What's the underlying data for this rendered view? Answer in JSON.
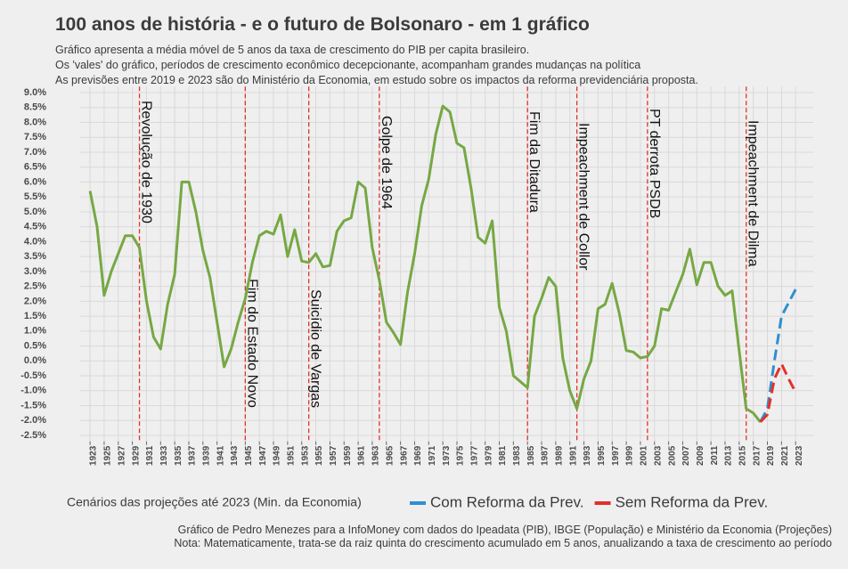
{
  "chart_data": {
    "type": "line",
    "title": "100 anos de história - e o futuro de Bolsonaro - em 1 gráfico",
    "subtitle": [
      "Gráfico apresenta a média móvel de 5 anos da taxa de crescimento do PIB per capita brasileiro.",
      "Os 'vales' do gráfico, períodos de crescimento econômico decepcionante, acompanham grandes mudanças na política",
      "As previsões entre 2019 e 2023 são do Ministério da Economia, em estudo sobre os impactos da reforma previdenciária proposta."
    ],
    "caption": [
      "Gráfico de Pedro Menezes para a InfoMoney com dados do Ipeadata (PIB), IBGE (População) e Ministério da Economia (Projeções)",
      "Nota: Matematicamente, trata-se da raiz quinta do crescimento acumulado em 5 anos, anualizando a taxa de crescimento ao período"
    ],
    "legend_title": "Cenários das projeções até 2023 (Min. da Economia)",
    "legend": "bottom",
    "grid": true,
    "xlim": [
      1921.6,
      2025.5
    ],
    "ylim": [
      -2.7,
      9.2
    ],
    "xticks": [
      1923,
      1925,
      1927,
      1929,
      1931,
      1933,
      1935,
      1937,
      1939,
      1941,
      1943,
      1945,
      1947,
      1949,
      1951,
      1953,
      1955,
      1957,
      1959,
      1961,
      1963,
      1965,
      1967,
      1969,
      1971,
      1973,
      1975,
      1977,
      1979,
      1981,
      1983,
      1985,
      1987,
      1989,
      1991,
      1993,
      1995,
      1997,
      1999,
      2001,
      2003,
      2005,
      2007,
      2009,
      2011,
      2013,
      2015,
      2017,
      2019,
      2021,
      2023
    ],
    "yticks": [
      {
        "value": -2.5,
        "label": "-2.5%"
      },
      {
        "value": -2,
        "label": "-2.0%"
      },
      {
        "value": -1.5,
        "label": "-1.5%"
      },
      {
        "value": -1,
        "label": "-1.0%"
      },
      {
        "value": -0.5,
        "label": "-0.5%"
      },
      {
        "value": 0,
        "label": "0.0%"
      },
      {
        "value": 0.5,
        "label": "0.5%"
      },
      {
        "value": 1,
        "label": "1.0%"
      },
      {
        "value": 1.5,
        "label": "1.5%"
      },
      {
        "value": 2,
        "label": "2.0%"
      },
      {
        "value": 2.5,
        "label": "2.5%"
      },
      {
        "value": 3,
        "label": "3.0%"
      },
      {
        "value": 3.5,
        "label": "3.5%"
      },
      {
        "value": 4,
        "label": "4.0%"
      },
      {
        "value": 4.5,
        "label": "4.5%"
      },
      {
        "value": 5,
        "label": "5.0%"
      },
      {
        "value": 5.5,
        "label": "5.5%"
      },
      {
        "value": 6,
        "label": "6.0%"
      },
      {
        "value": 6.5,
        "label": "6.5%"
      },
      {
        "value": 7,
        "label": "7.0%"
      },
      {
        "value": 7.5,
        "label": "7.5%"
      },
      {
        "value": 8,
        "label": "8.0%"
      },
      {
        "value": 8.5,
        "label": "8.5%"
      },
      {
        "value": 9,
        "label": "9.0%"
      }
    ],
    "series": [
      {
        "color": "#76a844",
        "dashed": false,
        "x": [
          1923,
          1924,
          1925,
          1926,
          1927,
          1928,
          1929,
          1930,
          1931,
          1932,
          1933,
          1934,
          1935,
          1936,
          1937,
          1938,
          1939,
          1940,
          1941,
          1942,
          1943,
          1944,
          1945,
          1946,
          1947,
          1948,
          1949,
          1950,
          1951,
          1952,
          1953,
          1954,
          1955,
          1956,
          1957,
          1958,
          1959,
          1960,
          1961,
          1962,
          1963,
          1964,
          1965,
          1966,
          1967,
          1968,
          1969,
          1970,
          1971,
          1972,
          1973,
          1974,
          1975,
          1976,
          1977,
          1978,
          1979,
          1980,
          1981,
          1982,
          1983,
          1984,
          1985,
          1986,
          1987,
          1988,
          1989,
          1990,
          1991,
          1992,
          1993,
          1994,
          1995,
          1996,
          1997,
          1998,
          1999,
          2000,
          2001,
          2002,
          2003,
          2004,
          2005,
          2006,
          2007,
          2008,
          2009,
          2010,
          2011,
          2012,
          2013,
          2014,
          2015,
          2016,
          2017,
          2018
        ],
        "values": [
          5.7,
          4.5,
          2.2,
          3.0,
          3.6,
          4.2,
          4.2,
          3.8,
          2.0,
          0.8,
          0.4,
          1.9,
          2.9,
          6.0,
          6.0,
          5.0,
          3.7,
          2.8,
          1.3,
          -0.2,
          0.4,
          1.3,
          2.1,
          3.3,
          4.2,
          4.35,
          4.25,
          4.9,
          3.5,
          4.4,
          3.35,
          3.3,
          3.6,
          3.15,
          3.2,
          4.35,
          4.7,
          4.8,
          6.0,
          5.8,
          3.8,
          2.7,
          1.3,
          0.95,
          0.55,
          2.3,
          3.6,
          5.2,
          6.1,
          7.6,
          8.55,
          8.35,
          7.3,
          7.15,
          5.8,
          4.15,
          3.95,
          4.7,
          1.8,
          1.0,
          -0.5,
          -0.7,
          -0.9,
          1.5,
          2.1,
          2.8,
          2.5,
          0.1,
          -1.0,
          -1.6,
          -0.6,
          0.0,
          1.75,
          1.9,
          2.6,
          1.6,
          0.35,
          0.3,
          0.1,
          0.15,
          0.5,
          1.75,
          1.7,
          2.3,
          2.9,
          3.75,
          2.55,
          3.3,
          3.3,
          2.5,
          2.2,
          2.35,
          0.35,
          -1.6,
          -1.75,
          -2.05
        ]
      },
      {
        "name": "Com Reforma da Prev.",
        "color": "#2f8fd0",
        "dashed": true,
        "x": [
          2018,
          2019,
          2020,
          2021,
          2022,
          2023
        ],
        "values": [
          -2.05,
          -1.6,
          0.0,
          1.5,
          1.95,
          2.4
        ]
      },
      {
        "name": "Sem Reforma da Prev.",
        "color": "#e3302a",
        "dashed": true,
        "x": [
          2018,
          2019,
          2020,
          2021,
          2022,
          2023
        ],
        "values": [
          -2.05,
          -1.8,
          -0.6,
          -0.1,
          -0.6,
          -1.05
        ]
      }
    ],
    "annotations": [
      {
        "x": 1930,
        "text": "Revolução de 1930"
      },
      {
        "x": 1945,
        "text": "Fim do Estado Novo"
      },
      {
        "x": 1954,
        "text": "Suicídio de Vargas"
      },
      {
        "x": 1964,
        "text": "Golpe de 1964"
      },
      {
        "x": 1985,
        "text": "Fim da Ditadura"
      },
      {
        "x": 1992,
        "text": "Impeachment de Collor"
      },
      {
        "x": 2002,
        "text": "PT derrota PSDB"
      },
      {
        "x": 2016,
        "text": "Impeachment de Dilma"
      }
    ],
    "annotation_color": "#e3302a"
  }
}
